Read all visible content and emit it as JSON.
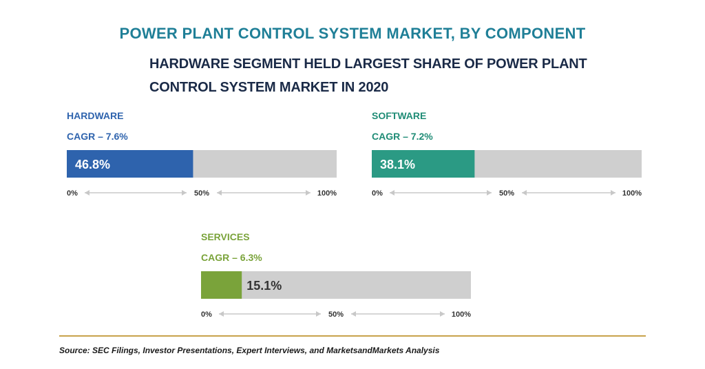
{
  "title": "POWER PLANT CONTROL SYSTEM MARKET, BY COMPONENT",
  "subtitle": "HARDWARE SEGMENT HELD LARGEST SHARE OF POWER PLANT CONTROL SYSTEM MARKET IN 2020",
  "source": "Source: SEC Filings, Investor Presentations, Expert Interviews, and MarketsandMarkets Analysis",
  "colors": {
    "track": "#cfcfcf",
    "arrow": "#c8c8c8",
    "rule": "#c8a24a"
  },
  "chart_data": [
    {
      "type": "bar",
      "segment": "HARDWARE",
      "cagr": "CAGR – 7.6%",
      "value": 46.8,
      "value_label": "46.8%",
      "xlim": [
        0,
        100
      ],
      "ticks": [
        "0%",
        "50%",
        "100%"
      ],
      "color": "#2e63ad",
      "title_color": "#2e63ad"
    },
    {
      "type": "bar",
      "segment": "SOFTWARE",
      "cagr": "CAGR – 7.2%",
      "value": 38.1,
      "value_label": "38.1%",
      "xlim": [
        0,
        100
      ],
      "ticks": [
        "0%",
        "50%",
        "100%"
      ],
      "color": "#2b9a84",
      "title_color": "#1f8c76"
    },
    {
      "type": "bar",
      "segment": "SERVICES",
      "cagr": "CAGR – 6.3%",
      "value": 15.1,
      "value_label": "15.1%",
      "xlim": [
        0,
        100
      ],
      "ticks": [
        "0%",
        "50%",
        "100%"
      ],
      "color": "#7aa33a",
      "title_color": "#7aa33a"
    }
  ]
}
